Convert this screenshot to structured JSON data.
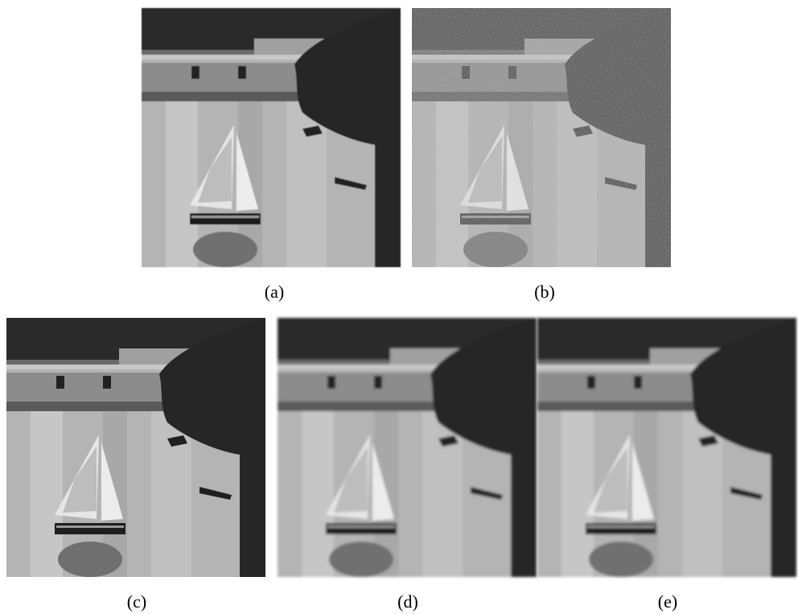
{
  "figure": {
    "captions": [
      "(a)",
      "(b)",
      "(c)",
      "(d)",
      "(e)"
    ]
  }
}
